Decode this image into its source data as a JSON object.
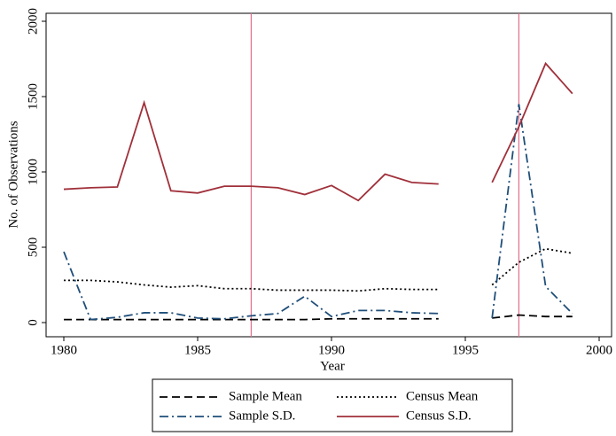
{
  "chart_data": {
    "type": "line",
    "x_label": "Year",
    "y_label": "No. of Observations",
    "x": [
      1980,
      1981,
      1982,
      1983,
      1984,
      1985,
      1986,
      1987,
      1988,
      1989,
      1990,
      1991,
      1992,
      1993,
      1994,
      1995,
      1996,
      1997,
      1998,
      1999
    ],
    "series": [
      {
        "name": "Sample Mean",
        "color": "#000000",
        "dash": "dashed",
        "values": [
          20,
          20,
          20,
          20,
          20,
          20,
          20,
          20,
          20,
          20,
          25,
          25,
          25,
          25,
          25,
          null,
          30,
          50,
          40,
          40
        ]
      },
      {
        "name": "Census Mean",
        "color": "#000000",
        "dash": "dotted",
        "values": [
          280,
          280,
          270,
          250,
          235,
          245,
          225,
          225,
          215,
          215,
          215,
          210,
          225,
          220,
          220,
          null,
          250,
          400,
          490,
          460
        ]
      },
      {
        "name": "Sample S.D.",
        "color": "#1f4e79",
        "dash": "dashdot",
        "values": [
          470,
          20,
          35,
          65,
          65,
          30,
          25,
          45,
          60,
          175,
          40,
          80,
          80,
          65,
          60,
          null,
          30,
          1450,
          240,
          60
        ]
      },
      {
        "name": "Census S.D.",
        "color": "#a0303a",
        "dash": "solid",
        "values": [
          885,
          895,
          900,
          1460,
          875,
          860,
          905,
          905,
          895,
          850,
          910,
          810,
          985,
          930,
          920,
          null,
          930,
          1300,
          1720,
          1520
        ]
      }
    ],
    "vlines": [
      1987,
      1997
    ],
    "vline_color": "#e0708a",
    "xlim": [
      1980,
      2000
    ],
    "xticks": [
      1980,
      1985,
      1990,
      1995,
      2000
    ],
    "ylim": [
      0,
      2000
    ],
    "yticks": [
      0,
      500,
      1000,
      1500,
      2000
    ],
    "legend": "bottom"
  }
}
